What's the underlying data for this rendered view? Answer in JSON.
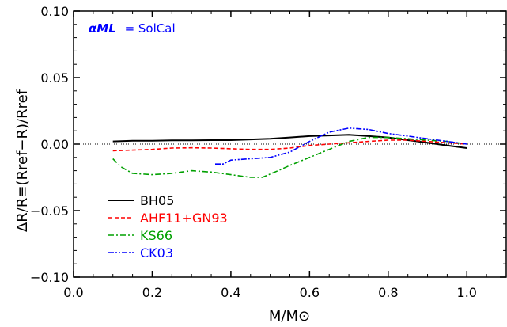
{
  "chart_data": {
    "type": "line",
    "xlabel": "M/M⊙",
    "ylabel": "ΔR/R≡(Rref−R)/Rref",
    "xlim": [
      0.0,
      1.1
    ],
    "ylim": [
      -0.1,
      0.1
    ],
    "xticks": [
      "0.0",
      "0.2",
      "0.4",
      "0.6",
      "0.8",
      "1.0"
    ],
    "yticks": [
      "-0.10",
      "-0.05",
      "0.00",
      "0.05",
      "0.10"
    ],
    "annotation": {
      "symbol": "αML",
      "text": "= SolCal",
      "color": "#0000ff"
    },
    "zero_line": true,
    "legend_position": "bottom-left",
    "series": [
      {
        "name": "BH05",
        "color": "#000000",
        "dash": "solid",
        "x": [
          0.1,
          0.15,
          0.2,
          0.25,
          0.3,
          0.35,
          0.4,
          0.45,
          0.5,
          0.55,
          0.6,
          0.65,
          0.7,
          0.75,
          0.8,
          0.85,
          0.9,
          0.95,
          1.0
        ],
        "y": [
          0.002,
          0.0025,
          0.0025,
          0.0028,
          0.0028,
          0.003,
          0.003,
          0.0035,
          0.004,
          0.005,
          0.006,
          0.0065,
          0.007,
          0.006,
          0.005,
          0.003,
          0.001,
          -0.001,
          -0.003
        ]
      },
      {
        "name": "AHF11+GN93",
        "color": "#ff0000",
        "dash": "dashed",
        "x": [
          0.1,
          0.15,
          0.2,
          0.25,
          0.3,
          0.35,
          0.4,
          0.45,
          0.5,
          0.55,
          0.6,
          0.65,
          0.7,
          0.75,
          0.8,
          0.85,
          0.9,
          0.95,
          1.0
        ],
        "y": [
          -0.005,
          -0.0045,
          -0.004,
          -0.003,
          -0.0028,
          -0.003,
          -0.0035,
          -0.004,
          -0.004,
          -0.003,
          -0.001,
          0.0,
          0.001,
          0.002,
          0.003,
          0.003,
          0.002,
          0.001,
          0.0
        ]
      },
      {
        "name": "KS66",
        "color": "#00a000",
        "dash": "dashdot",
        "x": [
          0.1,
          0.12,
          0.15,
          0.2,
          0.25,
          0.3,
          0.35,
          0.4,
          0.45,
          0.48,
          0.52,
          0.55,
          0.6,
          0.65,
          0.7,
          0.75,
          0.8,
          0.85,
          0.9,
          0.95,
          1.0
        ],
        "y": [
          -0.011,
          -0.017,
          -0.022,
          -0.023,
          -0.022,
          -0.02,
          -0.021,
          -0.023,
          -0.025,
          -0.025,
          -0.02,
          -0.016,
          -0.01,
          -0.004,
          0.002,
          0.005,
          0.005,
          0.004,
          0.003,
          0.002,
          0.0
        ]
      },
      {
        "name": "CK03",
        "color": "#0000ff",
        "dash": "dashdotdot",
        "x": [
          0.36,
          0.38,
          0.4,
          0.45,
          0.5,
          0.55,
          0.6,
          0.65,
          0.7,
          0.75,
          0.8,
          0.85,
          0.9,
          0.95,
          1.0
        ],
        "y": [
          -0.015,
          -0.015,
          -0.012,
          -0.011,
          -0.01,
          -0.006,
          0.002,
          0.009,
          0.012,
          0.011,
          0.008,
          0.006,
          0.004,
          0.002,
          0.0
        ]
      }
    ]
  }
}
